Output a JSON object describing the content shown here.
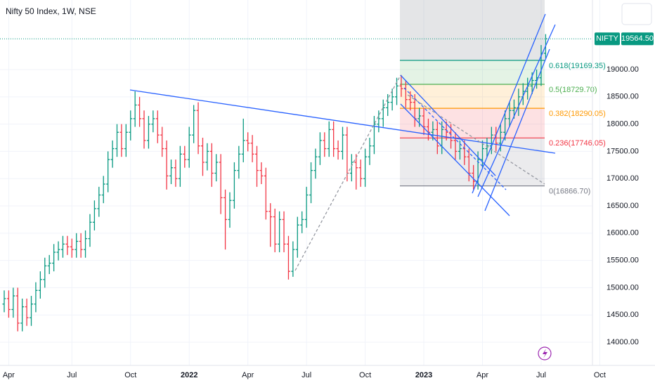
{
  "chart_data": {
    "type": "ohlc",
    "title": "Nifty 50 Index, 1W, NSE",
    "categories": [
      null,
      "Apr",
      null,
      null,
      null,
      null,
      null,
      null,
      null,
      null,
      null,
      null,
      null,
      null,
      null,
      "Jul",
      null,
      null,
      null,
      null,
      null,
      null,
      null,
      null,
      null,
      null,
      null,
      null,
      "Oct",
      null,
      null,
      null,
      null,
      null,
      null,
      null,
      null,
      null,
      null,
      null,
      null,
      "2022",
      null,
      null,
      null,
      null,
      null,
      null,
      null,
      null,
      null,
      null,
      null,
      null,
      "Apr",
      null,
      null,
      null,
      null,
      null,
      null,
      null,
      null,
      null,
      null,
      null,
      null,
      "Jul",
      null,
      null,
      null,
      null,
      null,
      null,
      null,
      null,
      null,
      null,
      null,
      null,
      "Oct",
      null,
      null,
      null,
      null,
      null,
      null,
      null,
      null,
      null,
      null,
      null,
      null,
      "2023",
      null,
      null,
      null,
      null,
      null,
      null,
      null,
      null,
      null,
      null,
      null,
      null,
      "Apr",
      null,
      null,
      null,
      null,
      null,
      null,
      null,
      null,
      null,
      null,
      null,
      null,
      "Jul",
      null,
      null,
      null,
      null,
      null,
      null,
      null,
      null,
      null,
      null,
      null,
      null,
      "Oct"
    ],
    "open": [
      14700,
      14800,
      14600,
      14850,
      14350,
      14650,
      14450,
      14700,
      14950,
      15150,
      15400,
      15450,
      15650,
      15700,
      15800,
      15750,
      15700,
      15850,
      15700,
      15900,
      16200,
      16450,
      16700,
      16900,
      17350,
      17550,
      17850,
      17550,
      17850,
      18100,
      18350,
      18100,
      17700,
      18000,
      18100,
      17800,
      17550,
      17050,
      17200,
      17000,
      17450,
      17350,
      17800,
      18250,
      17600,
      17300,
      17500,
      17100,
      17300,
      16650,
      16250,
      16600,
      17150,
      17450,
      17700,
      17650,
      17450,
      17150,
      17050,
      16400,
      16300,
      15800,
      16250,
      15800,
      15300,
      15700,
      16150,
      16250,
      16700,
      17150,
      17400,
      17700,
      17550,
      17900,
      17550,
      17500,
      17800,
      17100,
      17300,
      17200,
      17000,
      17400,
      17600,
      18000,
      18100,
      18300,
      18400,
      18500,
      18700,
      18650,
      18450,
      18400,
      18100,
      18150,
      17950,
      17850,
      17900,
      17600,
      17900,
      17850,
      17700,
      17500,
      17550,
      17400,
      17100,
      16950,
      17350,
      17550,
      17600,
      17800,
      17650,
      17850,
      18100,
      18250,
      18300,
      18500,
      18600,
      18700,
      18800,
      18850,
      19300,
      null,
      null,
      null,
      null,
      null,
      null,
      null,
      null,
      null,
      null,
      null,
      null
    ],
    "high": [
      14950,
      14950,
      15000,
      15000,
      14800,
      14800,
      14850,
      15100,
      15300,
      15550,
      15600,
      15800,
      15850,
      15950,
      15950,
      15900,
      16000,
      16000,
      16050,
      16350,
      16600,
      16850,
      17050,
      17500,
      17700,
      18000,
      18000,
      18000,
      18250,
      18600,
      18500,
      18250,
      18150,
      18250,
      18250,
      17950,
      17700,
      17350,
      17350,
      17600,
      17600,
      17950,
      18350,
      18400,
      17750,
      17650,
      17650,
      17450,
      17450,
      16800,
      16750,
      17300,
      17600,
      18100,
      17850,
      17800,
      17600,
      17300,
      17200,
      16550,
      16450,
      16400,
      16400,
      15950,
      15850,
      16300,
      16400,
      16850,
      17300,
      17550,
      17850,
      17850,
      18050,
      18050,
      17700,
      17950,
      17950,
      17450,
      17450,
      17350,
      17550,
      17750,
      18150,
      18250,
      18450,
      18550,
      18650,
      18850,
      18900,
      18800,
      18600,
      18550,
      18300,
      18300,
      18100,
      18050,
      18050,
      18050,
      18050,
      18000,
      17850,
      17700,
      17700,
      17550,
      17250,
      17500,
      17700,
      17750,
      17950,
      17950,
      18000,
      18250,
      18400,
      18450,
      18650,
      18750,
      18850,
      18950,
      19000,
      19450,
      19650,
      null,
      null,
      null,
      null,
      null,
      null,
      null,
      null,
      null,
      null,
      null,
      null
    ],
    "low": [
      14550,
      14450,
      14450,
      14200,
      14200,
      14300,
      14300,
      14550,
      14800,
      15000,
      15250,
      15300,
      15500,
      15550,
      15600,
      15550,
      15550,
      15550,
      15550,
      15750,
      16050,
      16300,
      16550,
      16750,
      17200,
      17400,
      17400,
      17400,
      17700,
      17950,
      17950,
      17550,
      17550,
      17850,
      17650,
      17400,
      16800,
      16900,
      16850,
      16850,
      17200,
      17200,
      17650,
      17450,
      17050,
      17150,
      16850,
      16950,
      16350,
      15700,
      16100,
      16450,
      17000,
      17300,
      17500,
      17300,
      16850,
      16900,
      16250,
      15750,
      15650,
      15650,
      15650,
      15150,
      15200,
      15550,
      16000,
      16100,
      16550,
      17000,
      17250,
      17400,
      17400,
      17400,
      17350,
      17350,
      16950,
      16950,
      16800,
      16850,
      16850,
      17250,
      17450,
      17850,
      17950,
      18150,
      18250,
      18350,
      18500,
      18300,
      18250,
      17950,
      17950,
      17800,
      17700,
      17700,
      17450,
      17450,
      17700,
      17550,
      17350,
      17350,
      17250,
      16950,
      16800,
      16800,
      17200,
      17400,
      17450,
      17500,
      17500,
      17700,
      17950,
      18100,
      18150,
      18350,
      18450,
      18550,
      18650,
      18700,
      19200,
      null,
      null,
      null,
      null,
      null,
      null,
      null,
      null,
      null,
      null,
      null,
      null
    ],
    "close": [
      14800,
      14600,
      14850,
      14350,
      14650,
      14450,
      14700,
      14950,
      15150,
      15400,
      15450,
      15650,
      15700,
      15800,
      15750,
      15700,
      15850,
      15700,
      15900,
      16200,
      16450,
      16700,
      16900,
      17350,
      17550,
      17850,
      17550,
      17850,
      18100,
      18350,
      18100,
      17700,
      18000,
      18100,
      17800,
      17550,
      17050,
      17200,
      17000,
      17450,
      17350,
      17800,
      18250,
      17600,
      17300,
      17500,
      17100,
      17300,
      16650,
      16250,
      16600,
      17150,
      17450,
      17700,
      17650,
      17450,
      17150,
      17050,
      16400,
      16300,
      15800,
      16250,
      15800,
      15300,
      15700,
      16150,
      16250,
      16700,
      17150,
      17400,
      17700,
      17550,
      17900,
      17550,
      17500,
      17800,
      17100,
      17300,
      17200,
      17000,
      17400,
      17600,
      18000,
      18100,
      18300,
      18400,
      18500,
      18700,
      18650,
      18450,
      18400,
      18100,
      18150,
      17950,
      17850,
      17900,
      17600,
      17900,
      17850,
      17700,
      17500,
      17550,
      17400,
      17100,
      16950,
      17350,
      17550,
      17600,
      17800,
      17650,
      17850,
      18100,
      18250,
      18300,
      18500,
      18600,
      18700,
      18800,
      18850,
      19300,
      19564.5,
      null,
      null,
      null,
      null,
      null,
      null,
      null,
      null,
      null,
      null,
      null,
      null
    ],
    "up_color": "#089981",
    "down_color": "#f23645",
    "ylim": [
      13575,
      20276
    ],
    "yticks": [
      {
        "value": 14000,
        "label": "14000.00"
      },
      {
        "value": 14500,
        "label": "14500.00"
      },
      {
        "value": 15000,
        "label": "15000.00"
      },
      {
        "value": 15500,
        "label": "15500.00"
      },
      {
        "value": 16000,
        "label": "16000.00"
      },
      {
        "value": 16500,
        "label": "16500.00"
      },
      {
        "value": 17000,
        "label": "17000.00"
      },
      {
        "value": 17500,
        "label": "17500.00"
      },
      {
        "value": 18000,
        "label": "18000.00"
      },
      {
        "value": 18500,
        "label": "18500.00"
      },
      {
        "value": 19000,
        "label": "19000.00"
      }
    ],
    "grid": true,
    "fib_levels": [
      {
        "value": 19169.35,
        "label": "0.618(19169.35)",
        "color": "#089981"
      },
      {
        "value": 18729.7,
        "label": "0.5(18729.70)",
        "color": "#4caf50"
      },
      {
        "value": 18290.05,
        "label": "0.382(18290.05)",
        "color": "#ff9800"
      },
      {
        "value": 17746.05,
        "label": "0.236(17746.05)",
        "color": "#f23645"
      },
      {
        "value": 16866.7,
        "label": "0(16866.70)",
        "color": "#787b86"
      }
    ],
    "symbol_label": "NIFTY",
    "last_price": {
      "value": 19564.5,
      "label": "19564.50"
    }
  }
}
